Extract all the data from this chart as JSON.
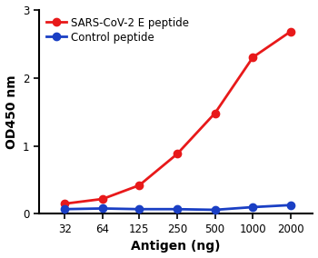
{
  "x_values": [
    32,
    64,
    125,
    250,
    500,
    1000,
    2000
  ],
  "red_values": [
    0.15,
    0.22,
    0.42,
    0.88,
    1.48,
    2.3,
    2.68
  ],
  "blue_values": [
    0.07,
    0.08,
    0.07,
    0.07,
    0.06,
    0.1,
    0.13
  ],
  "red_color": "#e8191a",
  "blue_color": "#1a3fc4",
  "red_label": "SARS-CoV-2 E peptide",
  "blue_label": "Control peptide",
  "xlabel": "Antigen (ng)",
  "ylabel": "OD450 nm",
  "ylim": [
    0,
    3.0
  ],
  "yticks": [
    0,
    1,
    2,
    3
  ],
  "xtick_labels": [
    "32",
    "64",
    "125",
    "250",
    "500",
    "1000",
    "2000"
  ],
  "marker": "o",
  "marker_size": 6,
  "linewidth": 2.0,
  "background_color": "#ffffff",
  "legend_fontsize": 8.5,
  "axis_label_fontsize": 10,
  "tick_fontsize": 8.5
}
